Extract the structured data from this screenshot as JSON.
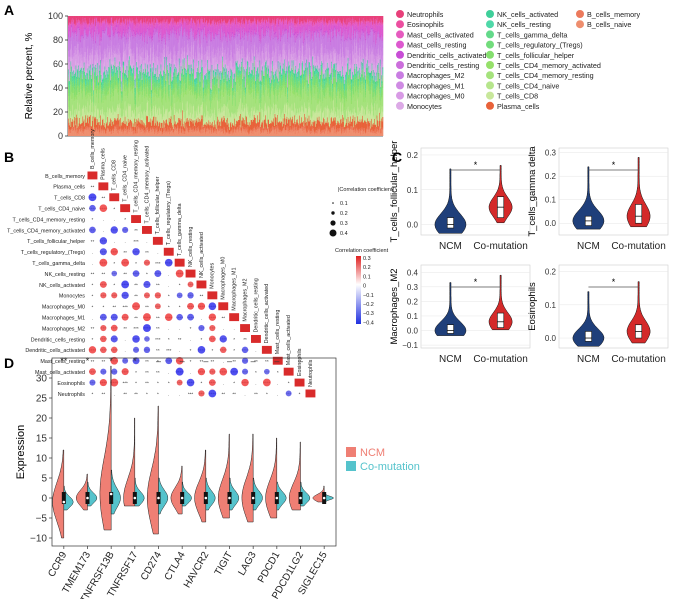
{
  "panels": {
    "A": "A",
    "B": "B",
    "C": "C",
    "D": "D"
  },
  "chart_data": [
    {
      "panel": "A",
      "type": "bar",
      "subtype": "stacked-100-percent",
      "ylabel": "Relative percent, %",
      "xlabel": "",
      "ylim": [
        0,
        100
      ],
      "yticks": [
        "0",
        "20",
        "40",
        "60",
        "80",
        "100"
      ],
      "n_samples": 500,
      "legend": [
        {
          "name": "Neutrophils",
          "color": "#e8407a"
        },
        {
          "name": "Eosinophils",
          "color": "#ec4fa0"
        },
        {
          "name": "Mast_cells_activated",
          "color": "#e65bbf"
        },
        {
          "name": "Mast_cells_resting",
          "color": "#dd59cf"
        },
        {
          "name": "Dendritic_cells_activated",
          "color": "#c84ed6"
        },
        {
          "name": "Dendritic_cells_resting",
          "color": "#cc6fdc"
        },
        {
          "name": "Macrophages_M2",
          "color": "#c97de2"
        },
        {
          "name": "Macrophages_M1",
          "color": "#cf8be3"
        },
        {
          "name": "Macrophages_M0",
          "color": "#d89be5"
        },
        {
          "name": "Monocytes",
          "color": "#dcaae6"
        },
        {
          "name": "NK_cells_activated",
          "color": "#3fcf9a"
        },
        {
          "name": "NK_cells_resting",
          "color": "#4fd8a8"
        },
        {
          "name": "T_cells_gamma_delta",
          "color": "#63d98a"
        },
        {
          "name": "T_cells_regulatory_(Tregs)",
          "color": "#72dc7c"
        },
        {
          "name": "T_cells_follicular_helper",
          "color": "#84de6e"
        },
        {
          "name": "T_cells_CD4_memory_activated",
          "color": "#96e06a"
        },
        {
          "name": "T_cells_CD4_memory_resting",
          "color": "#a5e27c"
        },
        {
          "name": "T_cells_CD4_naive",
          "color": "#b6e58c"
        },
        {
          "name": "T_cells_CD8",
          "color": "#c8e79b"
        },
        {
          "name": "Plasma_cells",
          "color": "#e8623a"
        },
        {
          "name": "B_cells_memory",
          "color": "#ec7a5c"
        },
        {
          "name": "B_cells_naive",
          "color": "#ee8e6e"
        }
      ],
      "series_mean_percent": [
        {
          "name": "B_cells_naive",
          "value": 4
        },
        {
          "name": "B_cells_memory",
          "value": 2
        },
        {
          "name": "Plasma_cells",
          "value": 6
        },
        {
          "name": "T_cells_CD8",
          "value": 8
        },
        {
          "name": "T_cells_CD4_naive",
          "value": 1
        },
        {
          "name": "T_cells_CD4_memory_resting",
          "value": 14
        },
        {
          "name": "T_cells_CD4_memory_activated",
          "value": 3
        },
        {
          "name": "T_cells_follicular_helper",
          "value": 5
        },
        {
          "name": "T_cells_regulatory_(Tregs)",
          "value": 4
        },
        {
          "name": "T_cells_gamma_delta",
          "value": 2
        },
        {
          "name": "NK_cells_resting",
          "value": 3
        },
        {
          "name": "NK_cells_activated",
          "value": 2
        },
        {
          "name": "Monocytes",
          "value": 5
        },
        {
          "name": "Macrophages_M0",
          "value": 8
        },
        {
          "name": "Macrophages_M1",
          "value": 4
        },
        {
          "name": "Macrophages_M2",
          "value": 12
        },
        {
          "name": "Dendritic_cells_resting",
          "value": 2
        },
        {
          "name": "Dendritic_cells_activated",
          "value": 1
        },
        {
          "name": "Mast_cells_resting",
          "value": 7
        },
        {
          "name": "Mast_cells_activated",
          "value": 2
        },
        {
          "name": "Eosinophils",
          "value": 1
        },
        {
          "name": "Neutrophils",
          "value": 4
        }
      ]
    },
    {
      "panel": "B",
      "type": "heatmap",
      "subtype": "correlation-matrix-lower-triangle",
      "rows": [
        "B_cells_memory",
        "Plasma_cells",
        "T_cells_CD8",
        "T_cells_CD4_naive",
        "T_cells_CD4_memory_resting",
        "T_cells_CD4_memory_activated",
        "T_cells_follicular_helper",
        "T_cells_regulatory_(Tregs)",
        "T_cells_gamma_delta",
        "NK_cells_resting",
        "NK_cells_activated",
        "Monocytes",
        "Macrophages_M0",
        "Macrophages_M1",
        "Macrophages_M2",
        "Dendritic_cells_resting",
        "Dendritic_cells_activated",
        "Mast_cells_resting",
        "Mast_cells_activated",
        "Eosinophils",
        "Neutrophils"
      ],
      "columns": [
        "B_cells_memory",
        "Plasma_cells",
        "T_cells_CD8",
        "T_cells_CD4_naive",
        "T_cells_CD4_memory_resting",
        "T_cells_CD4_memory_activated",
        "T_cells_follicular_helper",
        "T_cells_regulatory_(Tregs)",
        "T_cells_gamma_delta",
        "NK_cells_resting",
        "NK_cells_activated",
        "Monocytes",
        "Macrophages_M0",
        "Macrophages_M1",
        "Macrophages_M2",
        "Dendritic_cells_resting",
        "Dendritic_cells_activated",
        "Mast_cells_resting",
        "Mast_cells_activated",
        "Eosinophils",
        "Neutrophils"
      ],
      "legend_size_title": "|Correlation coefficient|",
      "legend_size_ticks": [
        "0.1",
        "0.2",
        "0.3",
        "0.4"
      ],
      "legend_color_title": "Correlation coefficient",
      "legend_color_ticks": [
        "0.3",
        "0.2",
        "0.1",
        "0",
        "−0.1",
        "−0.2",
        "−0.3",
        "−0.4"
      ],
      "clim": [
        -0.4,
        0.3
      ],
      "significance_symbols": [
        "*",
        "**",
        "***",
        "****",
        "."
      ]
    },
    {
      "panel": "C",
      "type": "violin",
      "groups": [
        "NCM",
        "Co-mutation"
      ],
      "group_colors": [
        "#1f3f7a",
        "#d42a2a"
      ],
      "subplots": [
        {
          "ylabel": "T_cells_follicular_helper",
          "yticks": [
            "0.0",
            "0.1",
            "0.2"
          ],
          "ylim": [
            -0.03,
            0.22
          ],
          "significance": "*",
          "medians": [
            0.0,
            0.05
          ],
          "q1": [
            -0.01,
            0.02
          ],
          "q3": [
            0.02,
            0.08
          ],
          "max": [
            0.16,
            0.17
          ]
        },
        {
          "ylabel": "T_cells_gamma delta",
          "yticks": [
            "0.0",
            "0.1",
            "0.2",
            "0.3"
          ],
          "ylim": [
            -0.05,
            0.32
          ],
          "significance": "*",
          "medians": [
            0.01,
            0.03
          ],
          "q1": [
            -0.01,
            0.0
          ],
          "q3": [
            0.03,
            0.08
          ],
          "max": [
            0.24,
            0.28
          ]
        },
        {
          "ylabel": "Macrophages_M2",
          "yticks": [
            "−0.1",
            "0.0",
            "0.1",
            "0.2",
            "0.3",
            "0.4"
          ],
          "ylim": [
            -0.12,
            0.45
          ],
          "significance": "*",
          "medians": [
            0.0,
            0.06
          ],
          "q1": [
            -0.02,
            0.02
          ],
          "q3": [
            0.04,
            0.12
          ],
          "max": [
            0.33,
            0.38
          ]
        },
        {
          "ylabel": "Eosinophils",
          "yticks": [
            "0.0",
            "0.1",
            "0.2"
          ],
          "ylim": [
            -0.03,
            0.22
          ],
          "significance": "*",
          "medians": [
            0.0,
            0.02
          ],
          "q1": [
            -0.01,
            0.0
          ],
          "q3": [
            0.02,
            0.04
          ],
          "max": [
            0.14,
            0.17
          ]
        }
      ]
    },
    {
      "panel": "D",
      "type": "violin",
      "subtype": "split-violin",
      "ylabel": "Expression",
      "ylim": [
        -12,
        35
      ],
      "yticks": [
        "−10",
        "−5",
        "0",
        "5",
        "10",
        "15",
        "20",
        "25",
        "30"
      ],
      "categories": [
        "CCR9",
        "TMEM173",
        "TNFRSF13B",
        "TNFRSF17",
        "CD274",
        "CTLA4",
        "HAVCR2",
        "TIGIT",
        "LAG3",
        "PDCD1",
        "PDCD1LG2",
        "SIGLEC15"
      ],
      "significance": [
        "**",
        "*",
        "*",
        "*",
        "–",
        "–",
        "–",
        "–",
        "–",
        "–",
        "–",
        ""
      ],
      "legend": [
        {
          "name": "NCM",
          "color": "#ef7f74"
        },
        {
          "name": "Co-mutation",
          "color": "#55c3cc"
        }
      ],
      "series": [
        {
          "name": "NCM",
          "min": [
            -10,
            -3,
            -8,
            -2,
            -9,
            -4,
            -6,
            -5,
            -6,
            -5,
            -3,
            -1
          ],
          "max": [
            12,
            6,
            33,
            20,
            23,
            8,
            12,
            16,
            16,
            15,
            14,
            3
          ],
          "median": [
            -1,
            0,
            1,
            0,
            0,
            0,
            0,
            0,
            0,
            0,
            0,
            0
          ]
        },
        {
          "name": "Co-mutation",
          "min": [
            -3,
            -2,
            -4,
            -2,
            -4,
            -2,
            -3,
            -3,
            -3,
            -3,
            -2,
            -1
          ],
          "max": [
            3,
            4,
            7,
            5,
            5,
            4,
            5,
            5,
            5,
            4,
            4,
            1
          ],
          "median": [
            -1,
            0,
            0,
            0,
            0,
            0,
            0,
            0,
            0,
            0,
            0,
            0
          ]
        }
      ]
    }
  ]
}
